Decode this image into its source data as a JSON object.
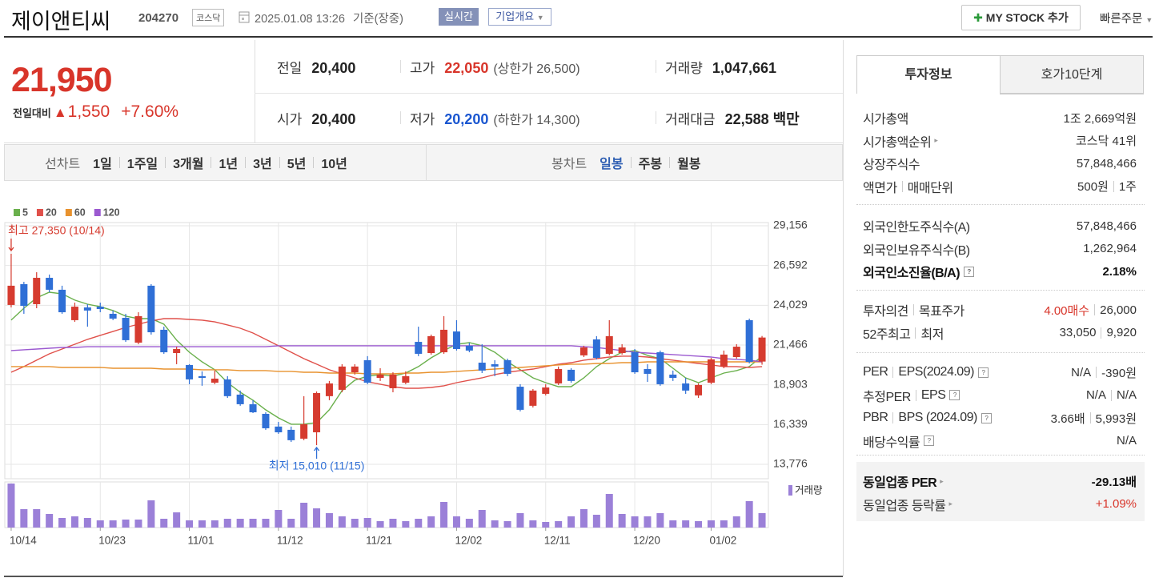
{
  "header": {
    "name": "제이앤티씨",
    "code": "204270",
    "market": "코스닥",
    "timestamp": "2025.01.08 13:26",
    "basis": "기준(장중)",
    "realtime": "실시간",
    "company_info": "기업개요",
    "my_stock": "MY STOCK 추가",
    "quick_order": "빠른주문"
  },
  "quote": {
    "price": "21,950",
    "change_label": "전일대비",
    "change": "1,550",
    "change_rate": "+7.60%"
  },
  "stats": [
    [
      {
        "label": "전일",
        "value": "20,400"
      },
      {
        "label": "고가",
        "value": "22,050",
        "note": "(상한가 26,500)"
      },
      {
        "label": "거래량",
        "value": "1,047,661"
      }
    ],
    [
      {
        "label": "시가",
        "value": "20,400"
      },
      {
        "label": "저가",
        "value": "20,200",
        "note": "(하한가 14,300)"
      },
      {
        "label": "거래대금",
        "value": "22,588 백만"
      }
    ]
  ],
  "period_tabs": {
    "line_label": "선차트",
    "line_options": [
      "1일",
      "1주일",
      "3개월",
      "1년",
      "3년",
      "5년",
      "10년"
    ],
    "candle_label": "봉차트",
    "candle_options": [
      "일봉",
      "주봉",
      "월봉"
    ]
  },
  "chart_data": {
    "type": "candlestick",
    "categories": [
      "10/14",
      null,
      null,
      null,
      null,
      null,
      null,
      "10/23",
      null,
      null,
      null,
      null,
      null,
      null,
      "11/01",
      null,
      null,
      null,
      null,
      null,
      null,
      "11/12",
      null,
      null,
      null,
      null,
      null,
      null,
      "11/21",
      null,
      null,
      null,
      null,
      null,
      null,
      "12/02",
      null,
      null,
      null,
      null,
      null,
      null,
      "12/11",
      null,
      null,
      null,
      null,
      null,
      null,
      "12/20",
      null,
      null,
      null,
      null,
      null,
      "01/02",
      null,
      null,
      null,
      null
    ],
    "open": [
      24050,
      25390,
      24100,
      25800,
      25030,
      23070,
      23890,
      23940,
      23480,
      23220,
      21620,
      25290,
      22450,
      20950,
      20180,
      19460,
      19040,
      19250,
      18270,
      17650,
      17030,
      16210,
      16000,
      15430,
      15840,
      18170,
      18580,
      19710,
      20490,
      19350,
      18680,
      19040,
      21670,
      20950,
      21000,
      22340,
      21420,
      20330,
      20230,
      20490,
      18780,
      17550,
      18320,
      18990,
      19870,
      20800,
      21830,
      20900,
      20950,
      21000,
      19920,
      21000,
      19560,
      18990,
      18220,
      19040,
      20080,
      20690,
      23070,
      20400
    ],
    "high": [
      27350,
      25540,
      26160,
      26010,
      25290,
      24200,
      24100,
      24200,
      23690,
      23480,
      23580,
      25390,
      22650,
      21360,
      20230,
      19770,
      19820,
      19460,
      18530,
      17910,
      17130,
      16510,
      16210,
      18170,
      18470,
      19150,
      20230,
      20230,
      20750,
      19970,
      19710,
      19770,
      22650,
      22140,
      23330,
      23070,
      21620,
      21520,
      20490,
      20590,
      18940,
      18630,
      18940,
      20080,
      19970,
      21420,
      22040,
      23070,
      21520,
      21210,
      20230,
      21110,
      19820,
      19350,
      18990,
      20640,
      21110,
      21520,
      23170,
      22050
    ],
    "low": [
      23890,
      23480,
      23840,
      24870,
      23480,
      22960,
      22650,
      23580,
      23070,
      21670,
      21520,
      22140,
      20900,
      20230,
      18940,
      18840,
      18940,
      18060,
      17550,
      17080,
      16000,
      15740,
      15220,
      15330,
      15010,
      17910,
      18420,
      19560,
      18940,
      19150,
      18420,
      18940,
      20750,
      20850,
      20900,
      21110,
      21000,
      19660,
      19460,
      19460,
      17190,
      17440,
      18220,
      18890,
      19040,
      20690,
      20540,
      20800,
      20850,
      19610,
      19090,
      18840,
      19150,
      18320,
      18060,
      18940,
      19970,
      20590,
      20280,
      20200
    ],
    "close": [
      25290,
      23990,
      25800,
      25030,
      23580,
      23940,
      23690,
      23790,
      23170,
      21780,
      23330,
      22290,
      21000,
      21210,
      19250,
      19350,
      19300,
      18170,
      17650,
      17130,
      16100,
      15840,
      15330,
      16360,
      18370,
      18990,
      20080,
      20080,
      19040,
      19560,
      19560,
      19460,
      20900,
      22040,
      22450,
      21210,
      21110,
      19820,
      20080,
      19610,
      17290,
      18530,
      18730,
      19920,
      19150,
      21310,
      20640,
      22040,
      21310,
      19710,
      19610,
      18940,
      19350,
      18530,
      18890,
      20540,
      20850,
      21360,
      20380,
      21950
    ],
    "up_color": "#d63b2f",
    "down_color": "#2f6fd6",
    "series": [
      {
        "name": "5",
        "color": "#6ab04c",
        "values": [
          23070,
          23840,
          24510,
          24870,
          24770,
          24360,
          24100,
          23940,
          23690,
          23330,
          23170,
          23170,
          22810,
          21780,
          21000,
          20380,
          19870,
          19040,
          18420,
          17910,
          17290,
          16770,
          16360,
          16360,
          16460,
          17290,
          18530,
          19200,
          19460,
          19560,
          19460,
          19660,
          20080,
          20640,
          21110,
          21520,
          21620,
          21420,
          21000,
          20380,
          19870,
          19350,
          19040,
          18780,
          18780,
          19350,
          20080,
          20590,
          21000,
          21110,
          20800,
          20590,
          19970,
          19350,
          19040,
          19350,
          19660,
          19820,
          20080,
          20750
        ]
      },
      {
        "name": "20",
        "color": "#e0504a",
        "values": [
          19710,
          20080,
          20490,
          20900,
          21210,
          21520,
          21830,
          22090,
          22340,
          22600,
          22810,
          23020,
          23170,
          23170,
          23120,
          23070,
          22960,
          22760,
          22550,
          22240,
          21830,
          21420,
          21000,
          20590,
          20230,
          19870,
          19610,
          19350,
          19090,
          18940,
          18780,
          18680,
          18680,
          18730,
          18840,
          19040,
          19200,
          19350,
          19560,
          19710,
          19820,
          19920,
          20080,
          20230,
          20330,
          20490,
          20590,
          20690,
          20750,
          20750,
          20690,
          20590,
          20490,
          20380,
          20280,
          20180,
          20080,
          20080,
          20020,
          20080
        ]
      },
      {
        "name": "60",
        "color": "#e8922e",
        "values": [
          20080,
          20080,
          20080,
          20080,
          20020,
          20020,
          20020,
          20020,
          19970,
          19970,
          19970,
          19970,
          19920,
          19920,
          19920,
          19870,
          19870,
          19870,
          19820,
          19820,
          19820,
          19770,
          19770,
          19710,
          19710,
          19660,
          19660,
          19660,
          19610,
          19610,
          19610,
          19660,
          19660,
          19710,
          19710,
          19770,
          19820,
          19870,
          19920,
          19970,
          20020,
          20080,
          20130,
          20180,
          20230,
          20230,
          20280,
          20280,
          20330,
          20330,
          20380,
          20380,
          20380,
          20380,
          20380,
          20380,
          20380,
          20380,
          20380,
          20380
        ]
      },
      {
        "name": "120",
        "color": "#9b59d0",
        "values": [
          21110,
          21160,
          21210,
          21260,
          21310,
          21310,
          21360,
          21360,
          21360,
          21360,
          21360,
          21360,
          21360,
          21360,
          21360,
          21360,
          21360,
          21360,
          21360,
          21360,
          21360,
          21420,
          21420,
          21420,
          21420,
          21420,
          21420,
          21420,
          21420,
          21420,
          21420,
          21420,
          21420,
          21420,
          21420,
          21420,
          21420,
          21420,
          21420,
          21420,
          21420,
          21420,
          21420,
          21420,
          21420,
          21360,
          21310,
          21210,
          21110,
          21000,
          20950,
          20900,
          20850,
          20800,
          20750,
          20690,
          20590,
          20540,
          20490,
          20380
        ]
      }
    ],
    "volume": {
      "name": "거래량",
      "color": "#9b80d8",
      "values": [
        3190000,
        1334000,
        1334000,
        986000,
        696000,
        812000,
        696000,
        522000,
        522000,
        580000,
        580000,
        1972000,
        638000,
        1102000,
        522000,
        522000,
        522000,
        638000,
        638000,
        638000,
        638000,
        1276000,
        638000,
        1798000,
        1392000,
        1044000,
        812000,
        638000,
        696000,
        464000,
        638000,
        464000,
        638000,
        812000,
        1856000,
        812000,
        638000,
        1276000,
        522000,
        464000,
        1044000,
        522000,
        406000,
        464000,
        812000,
        1334000,
        928000,
        2436000,
        986000,
        812000,
        812000,
        1044000,
        522000,
        522000,
        464000,
        522000,
        522000,
        812000,
        1914000,
        1047661
      ]
    },
    "ylim": [
      13776,
      29156
    ],
    "yticks": [
      {
        "value": 29156,
        "label": "29,156"
      },
      {
        "value": 26592,
        "label": "26,592"
      },
      {
        "value": 24029,
        "label": "24,029"
      },
      {
        "value": 21466,
        "label": "21,466"
      },
      {
        "value": 18903,
        "label": "18,903"
      },
      {
        "value": 16339,
        "label": "16,339"
      },
      {
        "value": 13776,
        "label": "13,776"
      }
    ],
    "grid": true,
    "annotations": [
      {
        "text": "최고 27,350 (10/14)",
        "color": "#d63b2f"
      },
      {
        "text": "최저 15,010 (11/15)",
        "color": "#2f6fd6"
      }
    ]
  },
  "side_panel": {
    "tabs": [
      "투자정보",
      "호가10단계"
    ],
    "groups": [
      [
        {
          "label": [
            "시가총액"
          ],
          "value": [
            "1조 2,669억원"
          ]
        },
        {
          "label": [
            "시가총액순위"
          ],
          "value": [
            "코스닥 41위"
          ]
        },
        {
          "label": [
            "상장주식수"
          ],
          "value": [
            "57,848,466"
          ]
        },
        {
          "label": [
            "액면가",
            "매매단위"
          ],
          "value": [
            "500원",
            "1주"
          ]
        }
      ],
      [
        {
          "label": [
            "외국인한도주식수(A)"
          ],
          "value": [
            "57,848,466"
          ]
        },
        {
          "label": [
            "외국인보유주식수(B)"
          ],
          "value": [
            "1,262,964"
          ]
        },
        {
          "label": [
            "외국인소진율(B/A)"
          ],
          "value": [
            "2.18%"
          ]
        }
      ],
      [
        {
          "label": [
            "투자의견",
            "목표주가"
          ],
          "value": [
            "4.00매수",
            "26,000"
          ]
        },
        {
          "label": [
            "52주최고",
            "최저"
          ],
          "value": [
            "33,050",
            "9,920"
          ]
        }
      ],
      [
        {
          "label": [
            "PER",
            "EPS(2024.09)"
          ],
          "value": [
            "N/A",
            "-390원"
          ]
        },
        {
          "label": [
            "추정PER",
            "EPS"
          ],
          "value": [
            "N/A",
            "N/A"
          ]
        },
        {
          "label": [
            "PBR",
            "BPS (2024.09)"
          ],
          "value": [
            "3.66배",
            "5,993원"
          ]
        },
        {
          "label": [
            "배당수익률"
          ],
          "value": [
            "N/A"
          ]
        }
      ],
      [
        {
          "label": [
            "동일업종 PER"
          ],
          "value": [
            "-29.13배"
          ]
        },
        {
          "label": [
            "동일업종 등락률"
          ],
          "value": [
            "+1.09%"
          ]
        }
      ]
    ]
  }
}
